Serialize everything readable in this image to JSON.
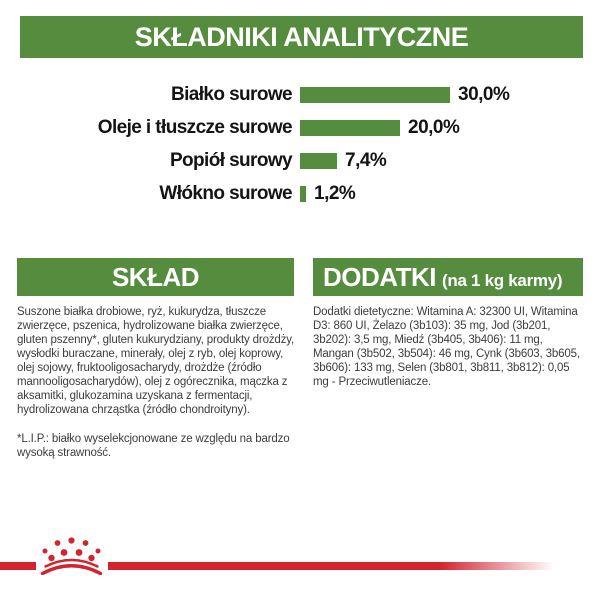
{
  "colors": {
    "green": "#568c3e",
    "red": "#d2232f",
    "body_text": "#3d3d3c",
    "chart_text": "#141414",
    "header_text": "#ffffff"
  },
  "header": {
    "title": "SKŁADNIKI ANALITYCZNE"
  },
  "chart_data": {
    "type": "bar",
    "orientation": "horizontal",
    "title": "SKŁADNIKI ANALITYCZNE",
    "categories": [
      "Białko surowe",
      "Oleje i tłuszcze surowe",
      "Popiół surowy",
      "Włókno surowe"
    ],
    "values": [
      30.0,
      20.0,
      7.4,
      1.2
    ],
    "value_labels": [
      "30,0%",
      "20,0%",
      "7,4%",
      "1,2%"
    ],
    "unit": "%",
    "xlim": [
      0,
      30
    ],
    "grid": false,
    "bar_color": "#568c3e"
  },
  "sklad": {
    "title": "SKŁAD",
    "body": "Suszone białka drobiowe, ryż, kukurydza, tłuszcze zwierzęce, pszenica, hydrolizowane białka zwierzęce, gluten pszenny*, gluten kukurydziany, produkty drożdży, wysłodki buraczane, minerały, olej z ryb, olej koprowy, olej sojowy, fruktooligosacharydy, drożdże (źródło mannooligosacharydów), olej z ogórecznika, mączka z aksamitki, glukozamina uzyskana z fermentacji, hydrolizowana chrząstka (źródło chondroityny).",
    "footnote": "*L.I.P.: białko wyselekcjonowane ze względu na bardzo wysoką strawność."
  },
  "dodatki": {
    "title": "DODATKI",
    "subtitle": "(na 1 kg karmy)",
    "body": "Dodatki dietetyczne: Witamina A: 32300 UI, Witamina D3: 860 UI, Żelazo (3b103): 35 mg, Jod (3b201, 3b202): 3,5 mg, Miedź (3b405, 3b406): 11 mg, Mangan (3b502, 3b504): 46 mg, Cynk (3b603, 3b605, 3b606): 133 mg, Selen (3b801, 3b811, 3b812): 0,05 mg - Przeciwutleniacze."
  },
  "footer": {
    "logo": "royal-canin-crown-icon"
  }
}
